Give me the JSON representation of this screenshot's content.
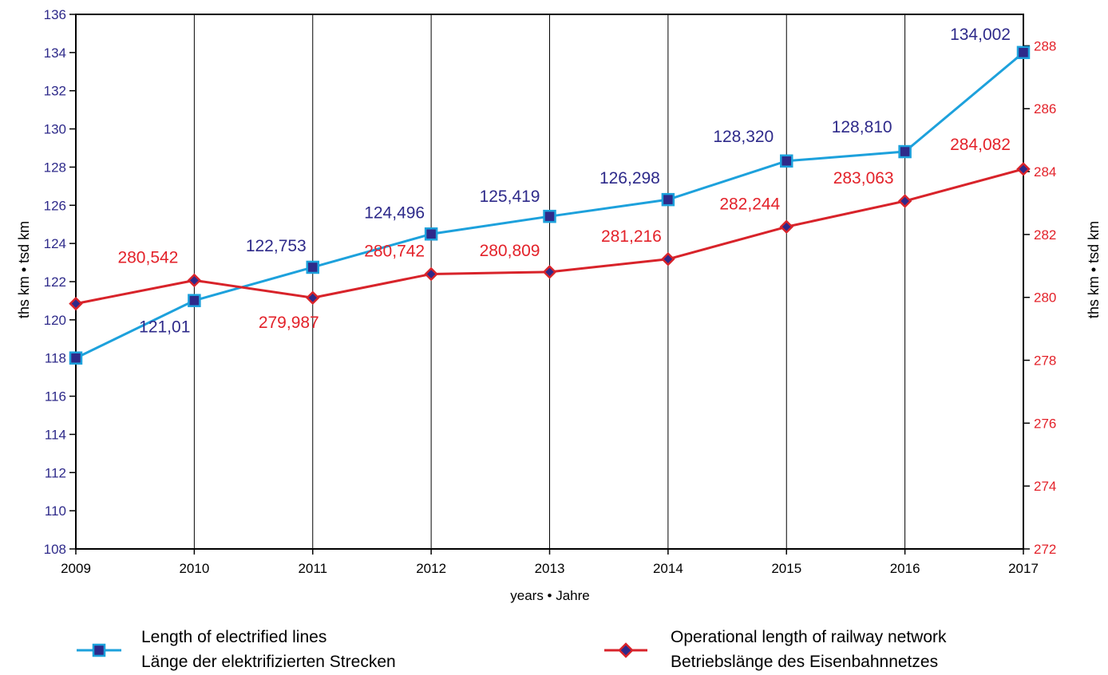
{
  "chart_data": {
    "type": "line",
    "x_axis": {
      "label": "years • Jahre",
      "categories": [
        "2009",
        "2010",
        "2011",
        "2012",
        "2013",
        "2014",
        "2015",
        "2016",
        "2017"
      ]
    },
    "y_left": {
      "label": "ths km • tsd km",
      "min": 108,
      "max": 136,
      "step": 2,
      "ticks": [
        "108",
        "110",
        "112",
        "114",
        "116",
        "118",
        "120",
        "122",
        "124",
        "126",
        "128",
        "130",
        "132",
        "134",
        "136"
      ],
      "color": "#2e2a8a"
    },
    "y_right": {
      "label": "ths km • tsd km",
      "min": 272,
      "max": 289,
      "step": 2,
      "ticks": [
        "272",
        "274",
        "276",
        "278",
        "280",
        "282",
        "284",
        "286",
        "288"
      ],
      "color": "#e3222a"
    },
    "grid": {
      "vertical": true,
      "horizontal": false
    },
    "legend_placement": "bottom",
    "series": [
      {
        "name": "Length of electrified lines",
        "name_de": "Länge der elektrifizierten Strecken",
        "axis": "left",
        "marker": "square",
        "line_color": "#1da1dc",
        "marker_fill": "#2e2a8a",
        "label_color": "#2e2a8a",
        "values": [
          118.0,
          121.01,
          122.753,
          124.496,
          125.419,
          126.298,
          128.32,
          128.81,
          134.002
        ],
        "labels": [
          "",
          "121,01",
          "122,753",
          "124,496",
          "125,419",
          "126,298",
          "128,320",
          "128,810",
          "134,002"
        ]
      },
      {
        "name": "Operational length of railway network",
        "name_de": "Betriebslänge des Eisenbahnnetzes",
        "axis": "right",
        "marker": "diamond",
        "line_color": "#d8232a",
        "marker_fill": "#2e2a8a",
        "label_color": "#e3222a",
        "values": [
          279.8,
          280.542,
          279.987,
          280.742,
          280.809,
          281.216,
          282.244,
          283.063,
          284.082
        ],
        "labels": [
          "",
          "280,542",
          "279,987",
          "280,742",
          "280,809",
          "281,216",
          "282,244",
          "283,063",
          "284,082"
        ]
      }
    ]
  }
}
